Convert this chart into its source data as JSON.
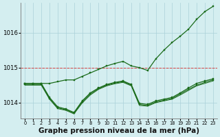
{
  "bg_color": "#d4eef0",
  "grid_color": "#aad0d8",
  "line_color": "#1a6b1a",
  "red_line_color": "#dd2222",
  "title": "Graphe pression niveau de la mer (hPa)",
  "title_fontsize": 7.5,
  "xlim": [
    -0.5,
    23.5
  ],
  "ylim": [
    1013.55,
    1016.85
  ],
  "yticks": [
    1014,
    1015,
    1016
  ],
  "xticks": [
    0,
    1,
    2,
    3,
    4,
    5,
    6,
    7,
    8,
    9,
    10,
    11,
    12,
    13,
    14,
    15,
    16,
    17,
    18,
    19,
    20,
    21,
    22,
    23
  ],
  "red_hline": 1015.0,
  "series": {
    "line_high": {
      "x": [
        0,
        1,
        2,
        3,
        4,
        5,
        6,
        7,
        8,
        9,
        10,
        11,
        12,
        13,
        14,
        15,
        16,
        17,
        18,
        19,
        20,
        21,
        22,
        23
      ],
      "y": [
        1014.55,
        1014.55,
        1014.55,
        1014.55,
        1014.6,
        1014.65,
        1014.65,
        1014.75,
        1014.85,
        1014.95,
        1015.05,
        1015.12,
        1015.18,
        1015.05,
        1015.0,
        1014.92,
        1015.25,
        1015.5,
        1015.72,
        1015.9,
        1016.1,
        1016.38,
        1016.6,
        1016.75
      ],
      "marker": "s",
      "ms": 1.8,
      "lw": 0.9
    },
    "line_mid1": {
      "x": [
        0,
        1,
        2,
        3,
        4,
        5,
        6,
        7,
        8,
        9,
        10,
        11,
        12,
        13,
        14,
        15,
        16,
        17,
        18,
        19,
        20,
        21,
        22,
        23
      ],
      "y": [
        1014.55,
        1014.55,
        1014.55,
        1014.15,
        1013.88,
        1013.82,
        1013.72,
        1014.05,
        1014.28,
        1014.42,
        1014.52,
        1014.58,
        1014.62,
        1014.52,
        1013.98,
        1013.95,
        1014.05,
        1014.1,
        1014.15,
        1014.28,
        1014.42,
        1014.55,
        1014.62,
        1014.68
      ],
      "marker": "s",
      "ms": 1.8,
      "lw": 0.9
    },
    "line_mid2": {
      "x": [
        0,
        1,
        2,
        3,
        4,
        5,
        6,
        7,
        8,
        9,
        10,
        11,
        12,
        13,
        14,
        15,
        16,
        17,
        18,
        19,
        20,
        21,
        22,
        23
      ],
      "y": [
        1014.52,
        1014.52,
        1014.52,
        1014.12,
        1013.85,
        1013.8,
        1013.7,
        1014.02,
        1014.25,
        1014.4,
        1014.5,
        1014.56,
        1014.6,
        1014.5,
        1013.95,
        1013.92,
        1014.02,
        1014.07,
        1014.12,
        1014.25,
        1014.38,
        1014.5,
        1014.58,
        1014.65
      ],
      "marker": "s",
      "ms": 1.5,
      "lw": 0.8
    },
    "line_flat": {
      "x": [
        0,
        1,
        2,
        3,
        4,
        5,
        6,
        7,
        8,
        9,
        10,
        11,
        12,
        13,
        14,
        15,
        16,
        17,
        18,
        19,
        20,
        21,
        22,
        23
      ],
      "y": [
        1014.5,
        1014.5,
        1014.5,
        1014.1,
        1013.83,
        1013.78,
        1013.68,
        1013.99,
        1014.22,
        1014.38,
        1014.48,
        1014.54,
        1014.58,
        1014.48,
        1013.92,
        1013.9,
        1014.0,
        1014.05,
        1014.1,
        1014.22,
        1014.35,
        1014.48,
        1014.55,
        1014.62
      ],
      "marker": null,
      "ms": 0,
      "lw": 0.7
    }
  }
}
